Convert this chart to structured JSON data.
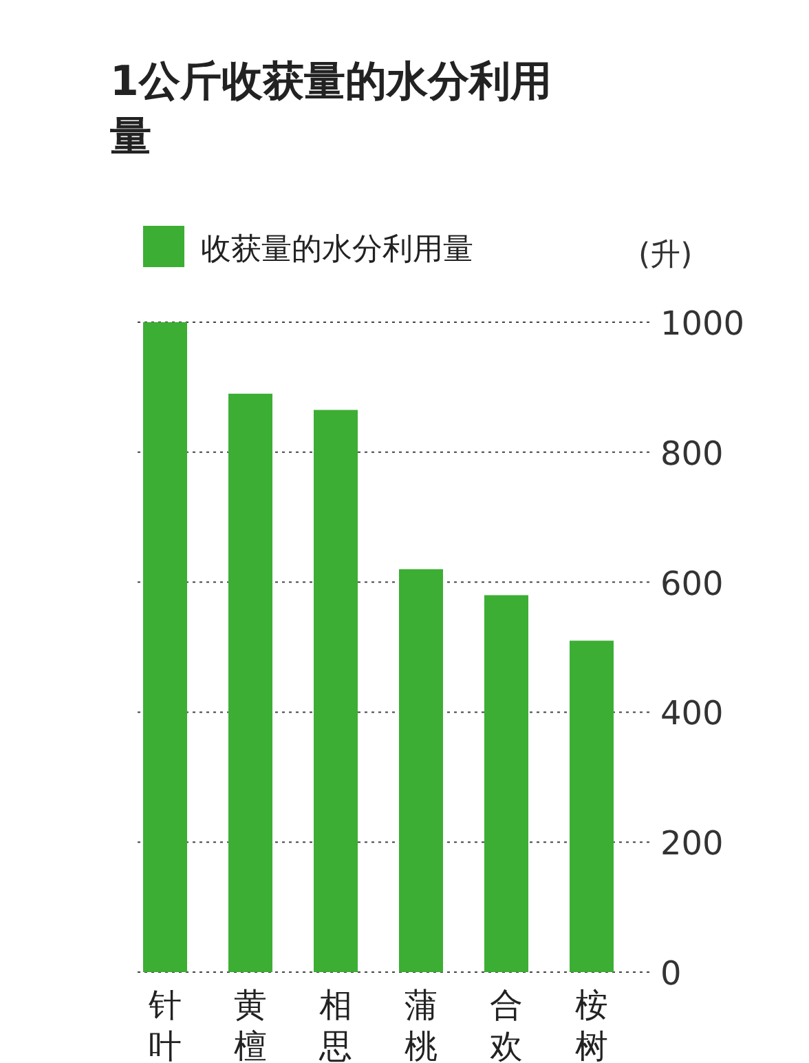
{
  "chart_data": {
    "type": "bar",
    "title": "1公斤收获量的水分利用量",
    "ylabel": "(升)",
    "categories": [
      "针叶",
      "黄檀",
      "相思",
      "蒲桃",
      "合欢",
      "桉树"
    ],
    "series": [
      {
        "name": "收获量的水分利用量",
        "color": "#3cae34",
        "values": [
          1000,
          890,
          865,
          620,
          580,
          510
        ]
      }
    ],
    "ylim": [
      0,
      1000
    ],
    "yticks": [
      0,
      200,
      400,
      600,
      800,
      1000
    ],
    "grid": "y",
    "legend": "top left"
  }
}
